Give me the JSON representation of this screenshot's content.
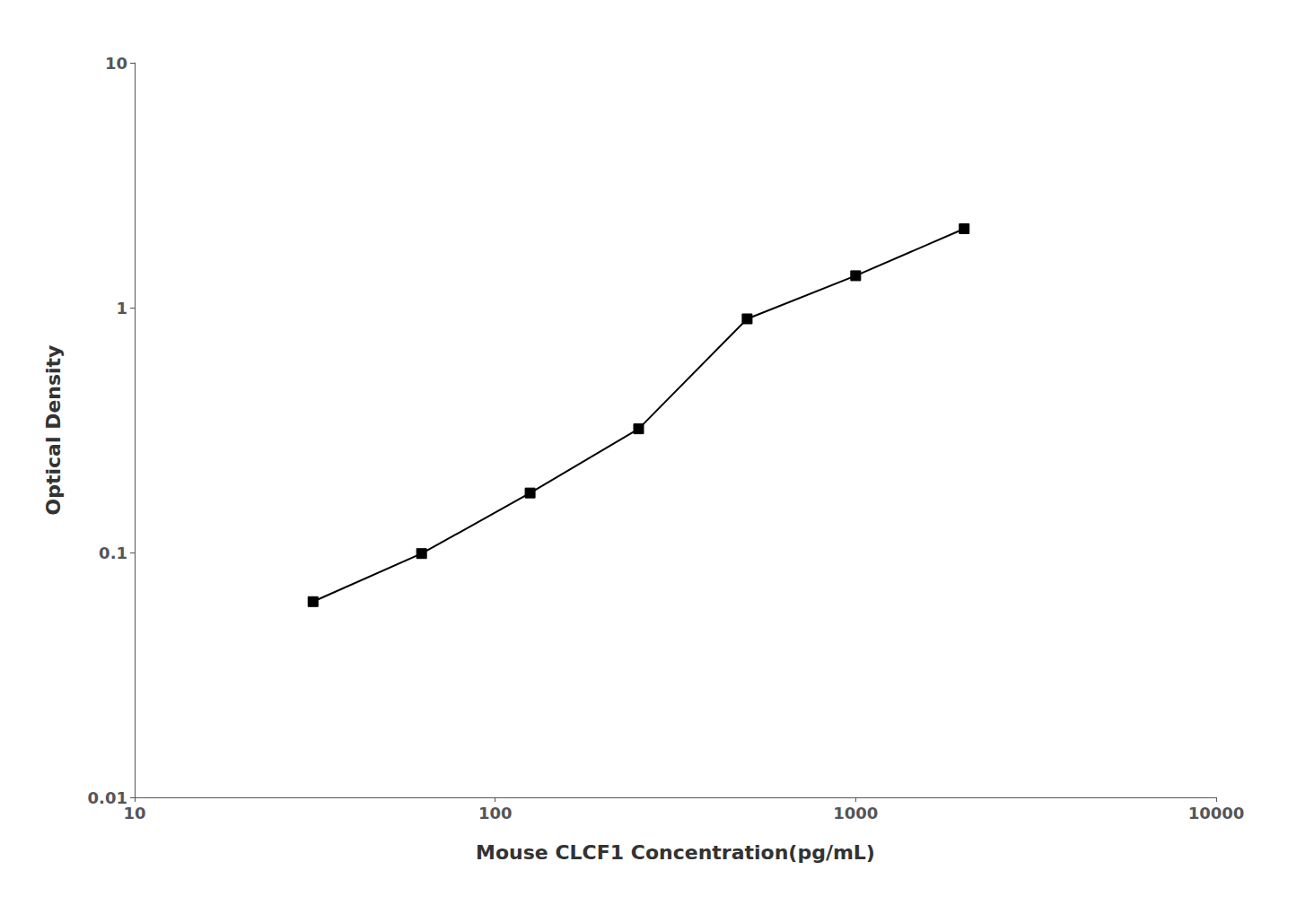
{
  "chart_data": {
    "type": "line",
    "x": [
      31.25,
      62.5,
      125,
      250,
      500,
      1000,
      2000
    ],
    "values": [
      0.063,
      0.099,
      0.175,
      0.32,
      0.9,
      1.35,
      2.1
    ],
    "xlabel": "Mouse CLCF1 Concentration(pg/mL)",
    "ylabel": "Optical Density",
    "xlim": [
      10,
      10000
    ],
    "ylim": [
      0.01,
      10
    ],
    "xticks": [
      10,
      100,
      1000,
      10000
    ],
    "yticks": [
      0.01,
      0.1,
      1,
      10
    ],
    "log": true,
    "grid": false,
    "color": "#000000",
    "marker": "square",
    "line_style": "solid"
  }
}
